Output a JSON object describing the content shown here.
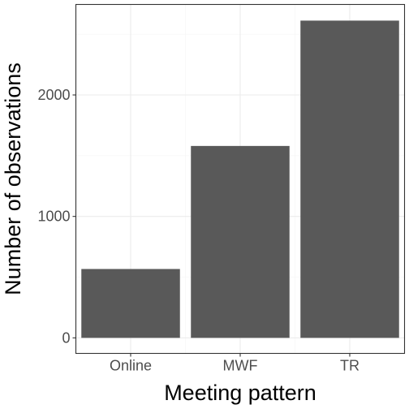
{
  "chart_data": {
    "type": "bar",
    "title": "",
    "xlabel": "Meeting pattern",
    "ylabel": "Number of observations",
    "categories": [
      "Online",
      "MWF",
      "TR"
    ],
    "values": [
      567,
      1580,
      2612
    ],
    "ylim": [
      -128,
      2745
    ],
    "yticks": [
      0,
      1000,
      2000
    ],
    "ytick_labels": [
      "0",
      "1000",
      "2000"
    ],
    "grid": true,
    "legend": "none",
    "colors": {
      "bar": "#595959",
      "grid_major": "#ebebeb",
      "grid_minor": "#f5f5f5",
      "panel_border": "#333333",
      "background": "#ffffff"
    }
  }
}
